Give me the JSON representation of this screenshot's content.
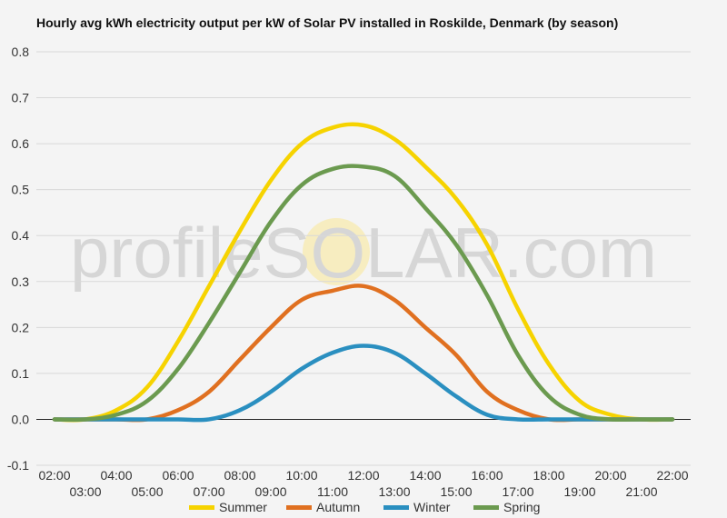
{
  "chart_data": {
    "type": "line",
    "title": "Hourly avg kWh electricity output per kW of Solar PV installed in Roskilde, Denmark (by season)",
    "xlabel": "",
    "ylabel": "",
    "ylim": [
      -0.1,
      0.8
    ],
    "yticks": [
      "0.8",
      "0.7",
      "0.6",
      "0.5",
      "0.4",
      "0.3",
      "0.2",
      "0.1",
      "0.0",
      "-0.1"
    ],
    "ytick_values": [
      0.8,
      0.7,
      0.6,
      0.5,
      0.4,
      0.3,
      0.2,
      0.1,
      0.0,
      -0.1
    ],
    "x": [
      "02:00",
      "03:00",
      "04:00",
      "05:00",
      "06:00",
      "07:00",
      "08:00",
      "09:00",
      "10:00",
      "11:00",
      "12:00",
      "13:00",
      "14:00",
      "15:00",
      "16:00",
      "17:00",
      "18:00",
      "19:00",
      "20:00",
      "21:00",
      "22:00"
    ],
    "grid": true,
    "legend_position": "bottom",
    "watermark": "profileSOLAR.com",
    "series": [
      {
        "name": "Summer",
        "color": "#f6d300",
        "values": [
          0.0,
          0.0,
          0.02,
          0.07,
          0.17,
          0.29,
          0.41,
          0.52,
          0.6,
          0.635,
          0.64,
          0.61,
          0.55,
          0.48,
          0.38,
          0.24,
          0.12,
          0.04,
          0.01,
          0.0,
          0.0
        ]
      },
      {
        "name": "Autumn",
        "color": "#e07020",
        "values": [
          0.0,
          0.0,
          0.0,
          0.0,
          0.02,
          0.06,
          0.13,
          0.2,
          0.26,
          0.28,
          0.29,
          0.26,
          0.2,
          0.14,
          0.06,
          0.02,
          0.0,
          0.0,
          0.0,
          0.0,
          0.0
        ]
      },
      {
        "name": "Winter",
        "color": "#2a8fc0",
        "values": [
          0.0,
          0.0,
          0.0,
          0.0,
          0.0,
          0.0,
          0.02,
          0.06,
          0.11,
          0.145,
          0.16,
          0.145,
          0.1,
          0.05,
          0.01,
          0.0,
          0.0,
          0.0,
          0.0,
          0.0,
          0.0
        ]
      },
      {
        "name": "Spring",
        "color": "#6b9a4f",
        "values": [
          0.0,
          0.0,
          0.01,
          0.04,
          0.11,
          0.21,
          0.32,
          0.43,
          0.51,
          0.545,
          0.55,
          0.53,
          0.46,
          0.38,
          0.27,
          0.14,
          0.05,
          0.01,
          0.0,
          0.0,
          0.0
        ]
      }
    ]
  }
}
